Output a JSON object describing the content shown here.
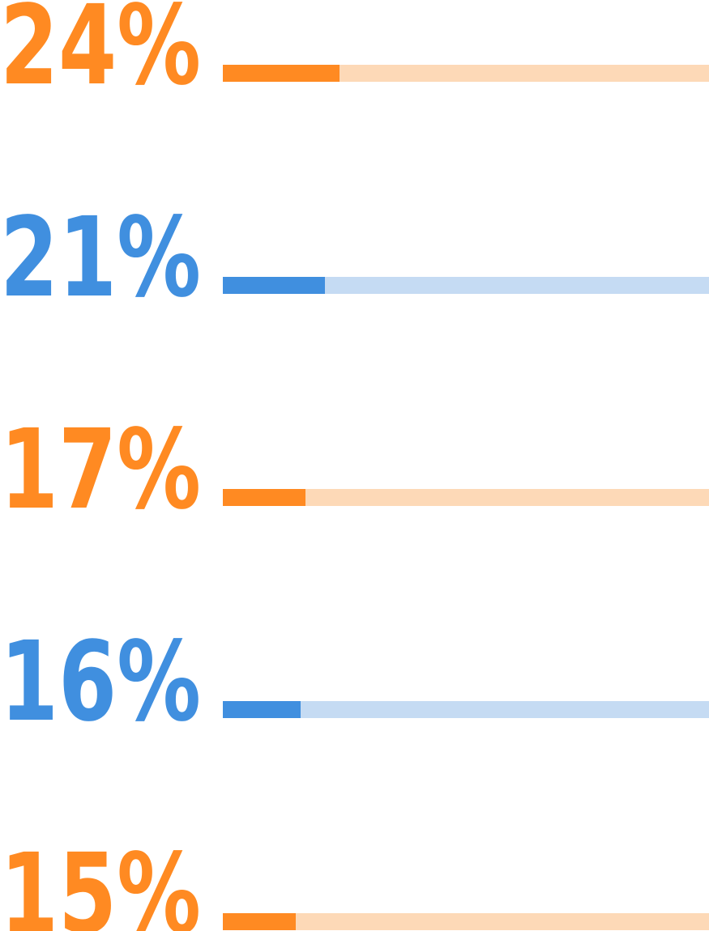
{
  "chart_data": {
    "type": "bar",
    "orientation": "horizontal",
    "values": [
      24,
      21,
      17,
      16,
      15
    ],
    "value_labels": [
      "24%",
      "21%",
      "17%",
      "16%",
      "15%"
    ],
    "colors": [
      "#ff8a22",
      "#408fdf",
      "#ff8a22",
      "#408fdf",
      "#ff8a22"
    ],
    "track_colors": [
      "#fdd9b7",
      "#c5dbf3",
      "#fdd9b7",
      "#c5dbf3",
      "#fdd9b7"
    ],
    "xlim": [
      0,
      100
    ]
  }
}
